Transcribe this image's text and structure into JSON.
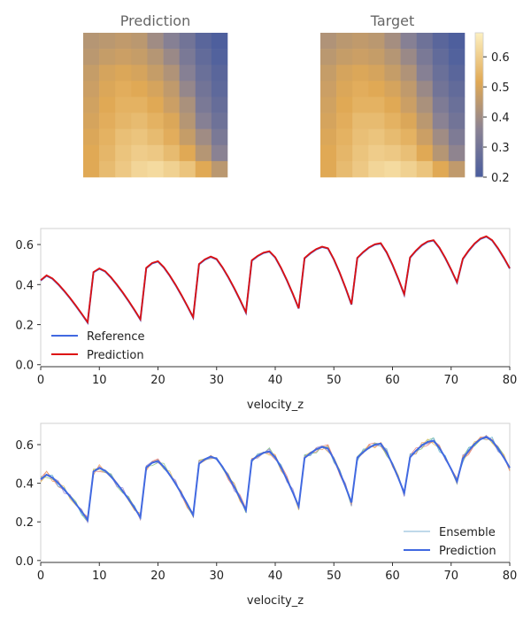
{
  "heatmaps": {
    "type": "heatmap",
    "colormap": [
      "#4a5d9e",
      "#8a8293",
      "#e0a955",
      "#fdf0c0"
    ],
    "colorbar": {
      "min": 0.2,
      "max": 0.68,
      "ticks": [
        "0.2",
        "0.3",
        "0.4",
        "0.5",
        "0.6"
      ],
      "tick_values": [
        0.2,
        0.3,
        0.4,
        0.5,
        0.6
      ]
    },
    "prediction": {
      "title": "Prediction",
      "grid": [
        [
          0.44,
          0.45,
          0.46,
          0.45,
          0.4,
          0.35,
          0.3,
          0.24,
          0.21
        ],
        [
          0.45,
          0.47,
          0.48,
          0.47,
          0.44,
          0.39,
          0.32,
          0.26,
          0.22
        ],
        [
          0.47,
          0.5,
          0.51,
          0.5,
          0.47,
          0.43,
          0.35,
          0.28,
          0.24
        ],
        [
          0.48,
          0.51,
          0.53,
          0.52,
          0.5,
          0.46,
          0.38,
          0.3,
          0.25
        ],
        [
          0.49,
          0.52,
          0.54,
          0.54,
          0.52,
          0.48,
          0.42,
          0.32,
          0.27
        ],
        [
          0.5,
          0.53,
          0.55,
          0.56,
          0.54,
          0.51,
          0.44,
          0.35,
          0.29
        ],
        [
          0.51,
          0.54,
          0.57,
          0.58,
          0.56,
          0.53,
          0.47,
          0.4,
          0.32
        ],
        [
          0.52,
          0.55,
          0.58,
          0.6,
          0.59,
          0.56,
          0.52,
          0.44,
          0.36
        ],
        [
          0.52,
          0.56,
          0.59,
          0.62,
          0.63,
          0.61,
          0.58,
          0.52,
          0.45
        ]
      ]
    },
    "target": {
      "title": "Target",
      "grid": [
        [
          0.43,
          0.45,
          0.46,
          0.45,
          0.41,
          0.35,
          0.29,
          0.24,
          0.21
        ],
        [
          0.45,
          0.47,
          0.48,
          0.47,
          0.44,
          0.39,
          0.32,
          0.26,
          0.22
        ],
        [
          0.47,
          0.5,
          0.51,
          0.5,
          0.47,
          0.43,
          0.35,
          0.28,
          0.24
        ],
        [
          0.48,
          0.51,
          0.53,
          0.52,
          0.5,
          0.46,
          0.39,
          0.3,
          0.26
        ],
        [
          0.49,
          0.52,
          0.54,
          0.54,
          0.52,
          0.48,
          0.42,
          0.33,
          0.28
        ],
        [
          0.5,
          0.53,
          0.56,
          0.56,
          0.54,
          0.51,
          0.45,
          0.36,
          0.3
        ],
        [
          0.51,
          0.54,
          0.57,
          0.58,
          0.56,
          0.54,
          0.48,
          0.4,
          0.33
        ],
        [
          0.52,
          0.55,
          0.58,
          0.6,
          0.59,
          0.57,
          0.52,
          0.44,
          0.37
        ],
        [
          0.52,
          0.56,
          0.59,
          0.62,
          0.63,
          0.61,
          0.58,
          0.52,
          0.46
        ]
      ]
    }
  },
  "chart_data": [
    {
      "type": "line",
      "title": "",
      "xlabel": "velocity_z",
      "ylabel": "",
      "xlim": [
        0,
        80
      ],
      "ylim": [
        -0.01,
        0.68
      ],
      "xticks": [
        0,
        10,
        20,
        30,
        40,
        50,
        60,
        70,
        80
      ],
      "yticks": [
        0.0,
        0.2,
        0.4,
        0.6
      ],
      "ytick_labels": [
        "0.0",
        "0.2",
        "0.4",
        "0.6"
      ],
      "grid": false,
      "legend": "lower-left",
      "series": [
        {
          "name": "Reference",
          "color": "#4169e1"
        },
        {
          "name": "Prediction",
          "color": "#dd1111"
        }
      ]
    },
    {
      "type": "line",
      "title": "",
      "xlabel": "velocity_z",
      "ylabel": "",
      "xlim": [
        0,
        80
      ],
      "ylim": [
        -0.01,
        0.71
      ],
      "xticks": [
        0,
        10,
        20,
        30,
        40,
        50,
        60,
        70,
        80
      ],
      "yticks": [
        0.0,
        0.2,
        0.4,
        0.6
      ],
      "ytick_labels": [
        "0.0",
        "0.2",
        "0.4",
        "0.6"
      ],
      "grid": false,
      "legend": "lower-right",
      "series": [
        {
          "name": "Ensemble",
          "color": "#7fb3d5"
        },
        {
          "name": "Prediction",
          "color": "#4169e1"
        }
      ],
      "ensemble_colors": [
        "#e07b7b",
        "#7fbf7f",
        "#e0c060",
        "#a08ad0",
        "#60b0d0",
        "#f0a060"
      ]
    }
  ]
}
